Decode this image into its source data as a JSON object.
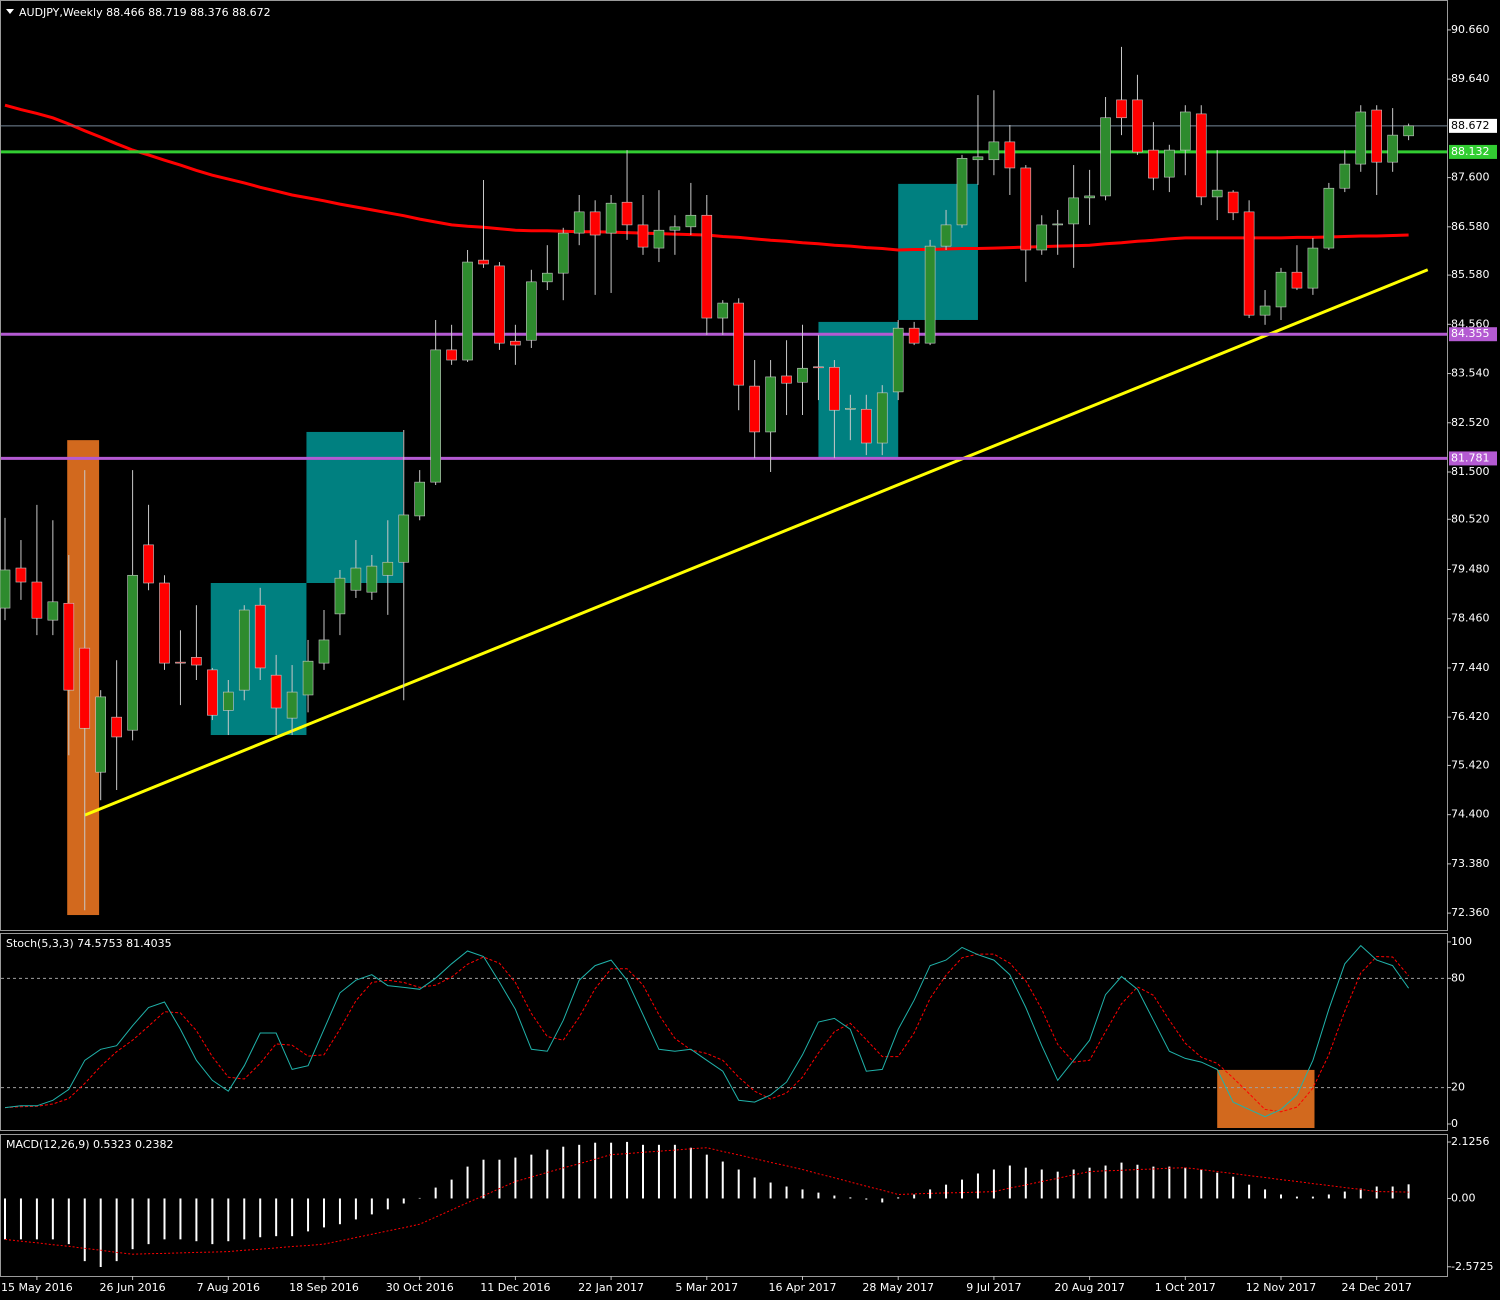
{
  "chart_data": [
    {
      "type": "candlestick",
      "title": "AUDJPY,Weekly",
      "categories": [
        null,
        null,
        "15 May 2016",
        null,
        null,
        null,
        null,
        null,
        "26 Jun 2016",
        null,
        null,
        null,
        null,
        null,
        "7 Aug 2016",
        null,
        null,
        null,
        null,
        null,
        "18 Sep 2016",
        null,
        null,
        null,
        null,
        null,
        "30 Oct 2016",
        null,
        null,
        null,
        null,
        null,
        "11 Dec 2016",
        null,
        null,
        null,
        null,
        null,
        "22 Jan 2017",
        null,
        null,
        null,
        null,
        null,
        "5 Mar 2017",
        null,
        null,
        null,
        null,
        null,
        "16 Apr 2017",
        null,
        null,
        null,
        null,
        null,
        "28 May 2017",
        null,
        null,
        null,
        null,
        null,
        "9 Jul 2017",
        null,
        null,
        null,
        null,
        null,
        "20 Aug 2017",
        null,
        null,
        null,
        null,
        null,
        "1 Oct 2017",
        null,
        null,
        null,
        null,
        null,
        "12 Nov 2017",
        null,
        null,
        null,
        null,
        null,
        "24 Dec 2017",
        null,
        null
      ],
      "open": [
        78.68,
        79.51,
        79.22,
        78.43,
        78.78,
        77.85,
        75.28,
        76.42,
        76.15,
        79.99,
        79.2,
        77.56,
        77.66,
        77.4,
        76.56,
        76.98,
        78.74,
        77.29,
        76.4,
        76.88,
        77.54,
        78.56,
        79.05,
        79.01,
        79.36,
        79.63,
        80.59,
        81.29,
        84.03,
        83.82,
        85.89,
        85.77,
        84.21,
        84.23,
        85.44,
        85.62,
        86.45,
        86.89,
        86.45,
        87.09,
        86.62,
        86.14,
        86.51,
        86.58,
        86.82,
        84.69,
        85.0,
        83.28,
        82.33,
        83.49,
        83.36,
        83.68,
        83.67,
        82.8,
        82.8,
        82.1,
        83.16,
        84.48,
        84.17,
        86.18,
        86.62,
        87.97,
        87.97,
        88.34,
        87.8,
        86.1,
        86.62,
        86.64,
        87.18,
        87.22,
        89.21,
        89.21,
        88.17,
        87.61,
        88.17,
        88.92,
        87.2,
        87.3,
        86.89,
        84.75,
        84.92,
        85.64,
        85.31,
        86.14,
        87.38,
        87.88,
        89.0,
        87.92,
        88.466
      ],
      "high": [
        80.55,
        80.09,
        80.82,
        80.5,
        79.78,
        81.54,
        76.98,
        77.6,
        81.54,
        80.82,
        79.36,
        78.22,
        78.74,
        77.44,
        77.19,
        78.74,
        79.1,
        77.71,
        77.5,
        78.02,
        78.64,
        79.47,
        80.09,
        79.78,
        80.5,
        82.37,
        81.54,
        84.65,
        84.55,
        86.1,
        87.55,
        85.85,
        84.55,
        85.69,
        86.2,
        86.56,
        87.24,
        87.13,
        87.24,
        88.17,
        87.24,
        87.34,
        86.82,
        87.49,
        87.24,
        85.06,
        85.1,
        83.82,
        83.82,
        84.23,
        84.55,
        84.34,
        83.82,
        83.1,
        83.1,
        83.3,
        84.65,
        84.61,
        86.31,
        86.93,
        88.07,
        89.31,
        89.41,
        88.69,
        87.86,
        86.82,
        86.93,
        87.86,
        87.76,
        89.27,
        90.31,
        89.73,
        88.75,
        88.28,
        89.1,
        89.1,
        88.17,
        87.34,
        87.13,
        85.27,
        85.73,
        86.2,
        86.35,
        87.49,
        88.17,
        89.1,
        89.1,
        89.04,
        88.719
      ],
      "low": [
        78.43,
        78.85,
        78.12,
        78.12,
        75.63,
        72.42,
        74.7,
        74.91,
        75.94,
        79.05,
        77.4,
        76.67,
        77.19,
        76.36,
        76.05,
        76.77,
        77.19,
        76.05,
        76.05,
        76.52,
        77.4,
        78.12,
        78.89,
        78.85,
        78.54,
        76.77,
        80.5,
        81.23,
        83.72,
        83.78,
        85.73,
        84.03,
        83.72,
        84.07,
        85.27,
        85.06,
        86.2,
        85.17,
        85.21,
        86.31,
        86.0,
        85.85,
        86.0,
        86.41,
        84.34,
        84.34,
        82.78,
        81.79,
        81.5,
        82.68,
        82.68,
        82.99,
        81.79,
        82.16,
        81.85,
        81.85,
        82.99,
        84.13,
        84.13,
        86.1,
        86.56,
        87.45,
        87.65,
        87.24,
        85.44,
        86.0,
        86.0,
        85.73,
        86.62,
        87.13,
        88.48,
        88.07,
        87.34,
        87.3,
        87.65,
        87.03,
        86.72,
        86.72,
        84.69,
        84.55,
        84.65,
        85.27,
        85.17,
        86.1,
        87.3,
        87.72,
        87.24,
        87.72,
        88.376
      ],
      "close": [
        79.47,
        79.22,
        78.47,
        78.81,
        76.98,
        76.19,
        76.84,
        76.01,
        79.36,
        79.2,
        77.54,
        77.54,
        77.5,
        76.46,
        76.94,
        78.64,
        77.44,
        76.61,
        76.94,
        77.58,
        78.02,
        79.3,
        79.51,
        79.55,
        79.63,
        80.61,
        81.29,
        84.03,
        83.82,
        85.85,
        85.81,
        84.17,
        84.13,
        85.44,
        85.62,
        86.45,
        86.89,
        86.41,
        87.07,
        86.62,
        86.16,
        86.51,
        86.58,
        86.82,
        84.69,
        85.0,
        83.3,
        82.33,
        83.47,
        83.34,
        83.65,
        83.66,
        82.78,
        82.82,
        82.1,
        83.14,
        84.48,
        84.17,
        86.18,
        86.62,
        88.0,
        88.03,
        88.34,
        87.8,
        86.1,
        86.62,
        86.64,
        87.18,
        87.22,
        88.84,
        88.84,
        88.13,
        87.59,
        88.17,
        88.96,
        87.2,
        87.34,
        86.87,
        84.75,
        84.94,
        85.64,
        85.31,
        86.14,
        87.38,
        87.88,
        88.96,
        87.92,
        88.48,
        88.672
      ],
      "up_color": "#2e8b2e",
      "down_color": "#ff0000",
      "wick_color": "#c8c8c8",
      "moving_average": {
        "color": "#ff0000",
        "values": [
          89.1,
          89.01,
          88.93,
          88.84,
          88.71,
          88.57,
          88.44,
          88.3,
          88.17,
          88.07,
          87.96,
          87.86,
          87.75,
          87.65,
          87.57,
          87.49,
          87.4,
          87.32,
          87.24,
          87.18,
          87.12,
          87.05,
          86.99,
          86.93,
          86.87,
          86.81,
          86.74,
          86.68,
          86.62,
          86.59,
          86.57,
          86.54,
          86.51,
          86.5,
          86.5,
          86.49,
          86.48,
          86.48,
          86.47,
          86.46,
          86.45,
          86.44,
          86.43,
          86.42,
          86.41,
          86.38,
          86.36,
          86.33,
          86.3,
          86.28,
          86.25,
          86.23,
          86.2,
          86.18,
          86.15,
          86.13,
          86.1,
          86.11,
          86.11,
          86.12,
          86.13,
          86.13,
          86.14,
          86.15,
          86.16,
          86.17,
          86.18,
          86.19,
          86.2,
          86.23,
          86.25,
          86.28,
          86.3,
          86.33,
          86.35,
          86.35,
          86.35,
          86.35,
          86.35,
          86.35,
          86.35,
          86.36,
          86.36,
          86.37,
          86.38,
          86.39,
          86.39,
          86.4,
          86.41
        ]
      },
      "trendline": {
        "color": "#ffff00",
        "x": [
          5,
          89.2
        ],
        "values": [
          74.39,
          85.69
        ]
      },
      "hlines": [
        {
          "value": 88.132,
          "color": "#32cd32"
        },
        {
          "value": 84.355,
          "color": "#b45ad2"
        },
        {
          "value": 81.781,
          "color": "#b45ad2"
        }
      ],
      "boxes": [
        {
          "x": [
            3.9,
            5.9
          ],
          "y": [
            72.32,
            82.16
          ],
          "color": "#d2691e"
        },
        {
          "x": [
            12.9,
            18.9
          ],
          "y": [
            76.05,
            79.2
          ],
          "color": "#008080"
        },
        {
          "x": [
            18.9,
            24.95
          ],
          "y": [
            79.2,
            82.33
          ],
          "color": "#008080"
        },
        {
          "x": [
            51.0,
            56.0
          ],
          "y": [
            81.81,
            84.61
          ],
          "color": "#008080"
        },
        {
          "x": [
            56.0,
            61.0
          ],
          "y": [
            84.65,
            87.47
          ],
          "color": "#008080"
        }
      ],
      "ylim": [
        72.01,
        91.28
      ],
      "yticks": [
        {
          "value": 90.66,
          "label": "90.660"
        },
        {
          "value": 89.64,
          "label": "89.640"
        },
        {
          "value": 87.6,
          "label": "87.600"
        },
        {
          "value": 86.58,
          "label": "86.580"
        },
        {
          "value": 85.58,
          "label": "85.580"
        },
        {
          "value": 84.56,
          "label": "84.560"
        },
        {
          "value": 83.54,
          "label": "83.540"
        },
        {
          "value": 82.52,
          "label": "82.520"
        },
        {
          "value": 81.5,
          "label": "81.500"
        },
        {
          "value": 80.52,
          "label": "80.520"
        },
        {
          "value": 79.48,
          "label": "79.480"
        },
        {
          "value": 78.46,
          "label": "78.460"
        },
        {
          "value": 77.44,
          "label": "77.440"
        },
        {
          "value": 76.42,
          "label": "76.420"
        },
        {
          "value": 75.42,
          "label": "75.420"
        },
        {
          "value": 74.4,
          "label": "74.400"
        },
        {
          "value": 73.38,
          "label": "73.380"
        },
        {
          "value": 72.36,
          "label": "72.360"
        }
      ]
    },
    {
      "type": "stochastic",
      "title": "Stoch(5,3,3)",
      "main": {
        "color": "#20b2aa",
        "values": [
          9,
          10,
          10,
          13,
          19,
          35,
          41,
          43,
          54,
          64,
          67,
          52,
          35,
          24,
          18,
          32,
          50,
          50,
          30,
          32,
          52,
          72,
          79,
          82,
          76,
          75,
          74,
          80,
          88,
          95,
          92,
          78,
          63,
          41,
          40,
          57,
          79,
          87,
          90,
          79,
          60,
          41,
          40,
          41,
          35,
          29,
          13,
          12,
          16,
          23,
          38,
          56,
          58,
          52,
          29,
          30,
          52,
          68,
          87,
          90,
          97,
          93,
          90,
          82,
          64,
          43,
          24,
          35,
          46,
          71,
          81,
          74,
          57,
          40,
          36,
          34,
          30,
          12,
          8,
          4,
          8,
          16,
          35,
          63,
          88,
          98,
          90,
          87,
          74.5753
        ]
      },
      "signal": {
        "color": "#ff0000",
        "values": [
          9,
          9.5,
          9.7,
          11,
          14,
          22.3,
          31.7,
          39.7,
          46,
          53.7,
          61.7,
          61,
          51.3,
          37,
          25.7,
          24.7,
          33.3,
          44,
          43.3,
          37.3,
          38,
          52,
          67.7,
          77.7,
          79,
          77.7,
          75,
          76.3,
          80.7,
          87.7,
          91.7,
          88.3,
          77.7,
          60.7,
          48,
          46,
          58.7,
          74.3,
          85.3,
          85.3,
          76.3,
          60,
          47,
          40.7,
          38.7,
          35,
          25.7,
          18,
          13.7,
          17,
          25.7,
          39,
          50.7,
          55.3,
          46.3,
          37,
          37,
          50,
          69,
          81.7,
          91.3,
          93.3,
          93.3,
          88.3,
          78.7,
          63,
          43.7,
          34,
          35,
          50.7,
          66,
          75.3,
          70.7,
          57,
          44.3,
          36.7,
          33.3,
          25.3,
          16.7,
          8,
          6.7,
          9.3,
          19.7,
          38,
          62,
          83,
          92,
          91.7,
          81.4035
        ]
      },
      "levels": [
        20,
        80
      ],
      "boxes": [
        {
          "x": [
            76,
            82.1
          ],
          "y": [
            -2.2,
            29.7
          ],
          "color": "#d2691e"
        }
      ],
      "ylim": [
        -3.3,
        104.9
      ],
      "yticks": [
        0,
        20,
        80,
        100
      ]
    },
    {
      "type": "macd",
      "title": "MACD(12,26,9)",
      "histogram": {
        "color": "#ffffff",
        "values": [
          -1.54,
          -1.54,
          -1.54,
          -1.54,
          -1.72,
          -2.36,
          -2.58,
          -2.36,
          -1.91,
          -1.72,
          -1.54,
          -1.54,
          -1.61,
          -1.72,
          -1.61,
          -1.54,
          -1.46,
          -1.42,
          -1.42,
          -1.24,
          -1.09,
          -0.97,
          -0.79,
          -0.6,
          -0.41,
          -0.19,
          0.02,
          0.41,
          0.71,
          1.2,
          1.46,
          1.46,
          1.54,
          1.65,
          1.84,
          1.95,
          2.02,
          2.1,
          2.1,
          2.13,
          2.02,
          2.02,
          2.02,
          1.91,
          1.65,
          1.39,
          1.09,
          0.79,
          0.6,
          0.45,
          0.34,
          0.22,
          0.11,
          0.04,
          -0.04,
          -0.15,
          0.04,
          0.15,
          0.34,
          0.52,
          0.71,
          0.94,
          1.09,
          1.24,
          1.16,
          1.09,
          1.01,
          1.09,
          1.16,
          1.24,
          1.35,
          1.27,
          1.2,
          1.2,
          1.16,
          1.09,
          0.97,
          0.82,
          0.52,
          0.34,
          0.15,
          0.07,
          0.07,
          0.15,
          0.26,
          0.37,
          0.45,
          0.45,
          0.5323
        ]
      },
      "signal": {
        "color": "#ff0000",
        "values": [
          -1.54,
          -1.61,
          -1.67,
          -1.74,
          -1.8,
          -1.88,
          -1.95,
          -2.03,
          -2.1,
          -2.08,
          -2.07,
          -2.05,
          -2.03,
          -2.02,
          -2.0,
          -1.95,
          -1.91,
          -1.86,
          -1.81,
          -1.77,
          -1.72,
          -1.6,
          -1.47,
          -1.35,
          -1.22,
          -1.1,
          -0.97,
          -0.7,
          -0.43,
          -0.16,
          0.1,
          0.37,
          0.64,
          0.81,
          0.98,
          1.15,
          1.31,
          1.48,
          1.65,
          1.69,
          1.74,
          1.78,
          1.82,
          1.87,
          1.91,
          1.77,
          1.64,
          1.5,
          1.36,
          1.23,
          1.09,
          0.93,
          0.78,
          0.62,
          0.46,
          0.31,
          0.15,
          0.17,
          0.19,
          0.21,
          0.22,
          0.24,
          0.26,
          0.39,
          0.51,
          0.64,
          0.76,
          0.89,
          1.01,
          1.04,
          1.06,
          1.09,
          1.11,
          1.14,
          1.16,
          1.09,
          1.01,
          0.94,
          0.86,
          0.79,
          0.71,
          0.64,
          0.56,
          0.49,
          0.41,
          0.34,
          0.26,
          0.25,
          0.2382
        ]
      },
      "ylim": [
        -2.92,
        2.39
      ],
      "yticks": [
        2.1256,
        {
          "value": 0,
          "label": "0.00"
        },
        -2.5725
      ]
    }
  ]
}
